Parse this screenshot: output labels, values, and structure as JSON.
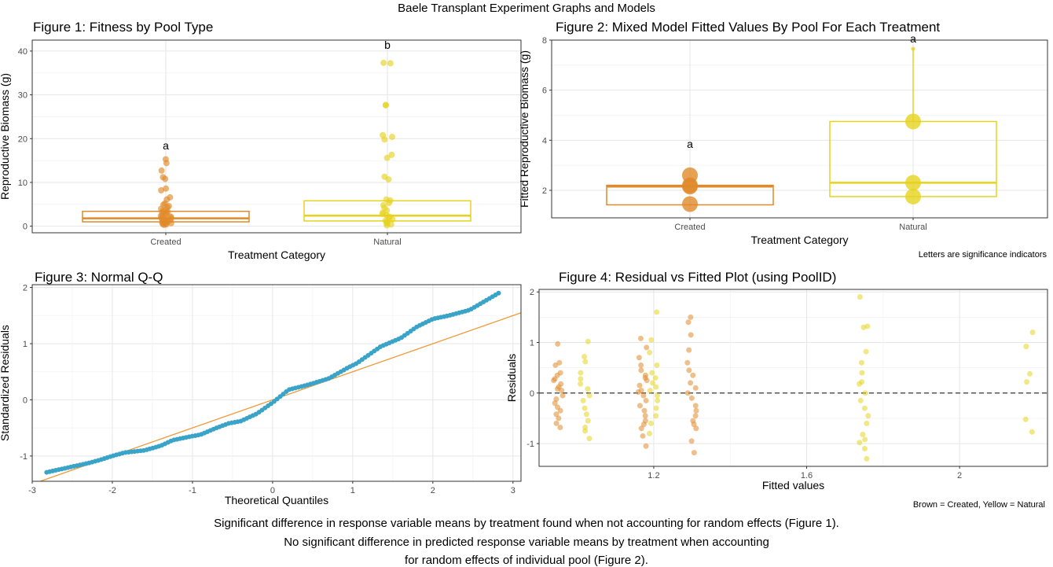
{
  "title": "Baele Transplant Experiment Graphs and Models",
  "colors": {
    "created": "#e08a2a",
    "natural": "#e6d31e",
    "qq_points": "#3aa3c8",
    "qq_line": "#ef9a3a",
    "zero_line": "#555555"
  },
  "caption_fig2": "Letters are significance indicators",
  "caption_fig4": "Brown = Created, Yellow = Natural",
  "footer": [
    "Significant difference in response variable means by treatment found when not accounting for random effects (Figure 1).",
    "No significant difference in predicted response variable means by treatment when accounting",
    "for random effects of individual pool (Figure 2)."
  ],
  "chart_data": [
    {
      "type": "box",
      "title": "Figure 1: Fitness by Pool Type",
      "xlabel": "Treatment Category",
      "ylabel": "Reproductive Biomass (g)",
      "categories": [
        "Created",
        "Natural"
      ],
      "ylim": [
        -1.5,
        42.5
      ],
      "yticks": [
        0,
        10,
        20,
        30,
        40
      ],
      "boxes": [
        {
          "category": "Created",
          "q1": 1.0,
          "median": 1.8,
          "q3": 3.4
        },
        {
          "category": "Natural",
          "q1": 1.2,
          "median": 2.4,
          "q3": 5.8
        }
      ],
      "points": {
        "Created": [
          15.3,
          14.4,
          12.7,
          11.2,
          10.8,
          8.6,
          8.2,
          6.6,
          6.1,
          5.2,
          4.9,
          4.6,
          4.3,
          4.0,
          3.7,
          3.5,
          3.3,
          3.1,
          2.9,
          2.7,
          2.5,
          2.3,
          2.2,
          2.0,
          1.8,
          1.7,
          1.5,
          1.4,
          1.2,
          1.1,
          1.0,
          0.9,
          0.8,
          0.7,
          0.6,
          0.5,
          0.4,
          0.3
        ],
        "Natural": [
          37.3,
          37.2,
          27.7,
          27.6,
          20.8,
          20.4,
          19.8,
          16.3,
          15.6,
          11.3,
          10.7,
          6.1,
          5.9,
          5.3,
          4.8,
          4.2,
          3.6,
          3.1,
          2.8,
          2.5,
          2.2,
          1.9,
          1.6,
          1.3,
          1.0,
          0.8,
          0.6,
          0.4,
          0.2
        ]
      },
      "annotations": [
        {
          "category": "Created",
          "y": 17.5,
          "text": "a"
        },
        {
          "category": "Natural",
          "y": 40.5,
          "text": "b"
        }
      ]
    },
    {
      "type": "box",
      "title": "Figure 2: Mixed Model Fitted Values By Pool For Each Treatment",
      "xlabel": "Treatment Category",
      "ylabel": "Fitted Reproductive Biomass (g)",
      "categories": [
        "Created",
        "Natural"
      ],
      "ylim": [
        0.9,
        8.0
      ],
      "yticks": [
        2,
        4,
        6,
        8
      ],
      "boxes": [
        {
          "category": "Created",
          "q1": 1.42,
          "median": 2.15,
          "q3": 2.2,
          "whisker_low": 1.42,
          "whisker_high": 2.2
        },
        {
          "category": "Natural",
          "q1": 1.75,
          "median": 2.3,
          "q3": 4.75,
          "whisker_low": 1.75,
          "whisker_high": 7.65
        },
        {
          "category": "",
          "q1": 0,
          "median": 0,
          "q3": 0
        }
      ],
      "points": {
        "Created": [
          2.6,
          2.2,
          2.15,
          1.45
        ],
        "Natural": [
          7.65,
          4.75,
          2.3,
          1.75
        ]
      },
      "annotations": [
        {
          "category": "Created",
          "y": 3.7,
          "text": "a"
        },
        {
          "category": "Natural",
          "y": 7.9,
          "text": "a"
        }
      ]
    },
    {
      "type": "scatter",
      "title": "Figure 3: Normal Q-Q",
      "xlabel": "Theoretical Quantiles",
      "ylabel": "Standardized Residuals",
      "xlim": [
        -3.0,
        3.1
      ],
      "ylim": [
        -1.45,
        2.05
      ],
      "xticks": [
        -3,
        -2,
        -1,
        0,
        1,
        2,
        3
      ],
      "yticks": [
        -1,
        0,
        1,
        2
      ],
      "reference_line": {
        "slope": 0.5,
        "intercept": 0.0
      },
      "points_anchor_x": [
        -2.82,
        -2.47,
        -2.28,
        -2.13,
        -2.0,
        -1.85,
        -1.6,
        -1.4,
        -1.25,
        -1.15,
        -1.05,
        -0.9,
        -0.7,
        -0.55,
        -0.4,
        -0.2,
        0.0,
        0.2,
        0.45,
        0.7,
        0.95,
        1.05,
        1.35,
        1.6,
        1.8,
        2.0,
        2.2,
        2.46,
        2.82
      ],
      "points_anchor_y": [
        -1.29,
        -1.18,
        -1.12,
        -1.06,
        -1.0,
        -0.94,
        -0.9,
        -0.82,
        -0.72,
        -0.69,
        -0.66,
        -0.62,
        -0.5,
        -0.42,
        -0.38,
        -0.25,
        -0.05,
        0.18,
        0.27,
        0.38,
        0.58,
        0.65,
        0.95,
        1.1,
        1.3,
        1.44,
        1.5,
        1.6,
        1.9
      ],
      "n_points": 150
    },
    {
      "type": "scatter",
      "title": "Figure 4: Residual vs Fitted Plot (using PoolID)",
      "xlabel": "Fitted values",
      "ylabel": "Residuals",
      "xlim": [
        0.9,
        2.23
      ],
      "ylim": [
        -1.45,
        2.05
      ],
      "xticks": [
        1.2,
        1.6,
        2.0
      ],
      "yticks": [
        -1,
        0,
        1,
        2
      ],
      "hline": 0,
      "groups": [
        {
          "x": 0.95,
          "treatment": "Created",
          "residuals": [
            0.97,
            0.6,
            0.55,
            0.35,
            0.28,
            0.25,
            0.18,
            0.12,
            0.05,
            -0.05,
            -0.12,
            -0.2,
            -0.28,
            -0.35,
            -0.42,
            -0.5,
            -0.6,
            -0.68,
            0.4,
            0.08
          ]
        },
        {
          "x": 1.02,
          "treatment": "Natural",
          "residuals": [
            1.02,
            0.72,
            0.62,
            0.4,
            0.28,
            0.18,
            0.08,
            -0.05,
            -0.15,
            -0.3,
            -0.42,
            -0.55,
            -0.68,
            -0.75,
            -0.9
          ]
        },
        {
          "x": 1.17,
          "treatment": "Created",
          "residuals": [
            1.08,
            0.9,
            0.7,
            0.55,
            0.45,
            0.35,
            0.25,
            0.15,
            0.05,
            -0.05,
            -0.15,
            -0.25,
            -0.35,
            -0.45,
            -0.55,
            -0.62,
            -0.7,
            -0.85,
            -1.05,
            0.02,
            0.3
          ]
        },
        {
          "x": 1.2,
          "treatment": "Natural",
          "residuals": [
            1.6,
            1.05,
            0.8,
            0.55,
            0.4,
            0.3,
            0.2,
            0.12,
            0.05,
            -0.05,
            -0.15,
            -0.3,
            -0.45,
            -0.6,
            -0.8
          ]
        },
        {
          "x": 1.3,
          "treatment": "Created",
          "residuals": [
            1.5,
            1.4,
            1.15,
            0.85,
            0.6,
            0.45,
            0.35,
            0.2,
            0.1,
            0.0,
            -0.1,
            -0.25,
            -0.35,
            -0.45,
            -0.55,
            -0.62,
            -0.7,
            -0.95,
            -1.18
          ]
        },
        {
          "x": 1.75,
          "treatment": "Natural",
          "residuals": [
            1.9,
            1.32,
            1.3,
            0.82,
            0.6,
            0.4,
            0.22,
            0.18,
            0.0,
            -0.15,
            -0.3,
            -0.45,
            -0.6,
            -0.82,
            -0.92,
            -1.1,
            -1.3,
            -0.98
          ]
        },
        {
          "x": 2.18,
          "treatment": "Natural",
          "residuals": [
            1.2,
            0.92,
            0.38,
            0.22,
            -0.52,
            -0.77
          ]
        }
      ]
    }
  ]
}
